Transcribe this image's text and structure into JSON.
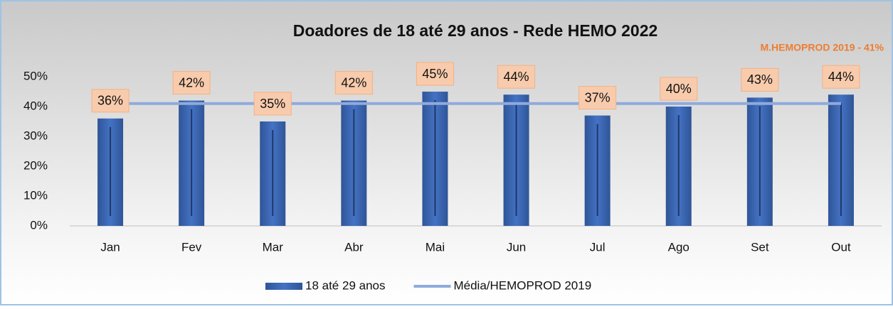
{
  "chart_data": {
    "type": "bar",
    "title": "Doadores de 18 até 29 anos - Rede HEMO 2022",
    "annotation": "M.HEMOPROD 2019 - 41%",
    "categories": [
      "Jan",
      "Fev",
      "Mar",
      "Abr",
      "Mai",
      "Jun",
      "Jul",
      "Ago",
      "Set",
      "Out"
    ],
    "series": [
      {
        "name": "18 até 29 anos",
        "type": "bar",
        "color": "#4472c4",
        "values": [
          36,
          42,
          35,
          42,
          45,
          44,
          37,
          40,
          43,
          44
        ],
        "value_labels": [
          "36%",
          "42%",
          "35%",
          "42%",
          "45%",
          "44%",
          "37%",
          "40%",
          "43%",
          "44%"
        ]
      },
      {
        "name": "Média/HEMOPROD 2019",
        "type": "line",
        "color": "#8faadc",
        "values": [
          41,
          41,
          41,
          41,
          41,
          41,
          41,
          41,
          41,
          41
        ]
      }
    ],
    "ylim": [
      0,
      50
    ],
    "yticks": [
      {
        "value": 0,
        "label": "0%"
      },
      {
        "value": 10,
        "label": "10%"
      },
      {
        "value": 20,
        "label": "20%"
      },
      {
        "value": 30,
        "label": "30%"
      },
      {
        "value": 40,
        "label": "40%"
      },
      {
        "value": 50,
        "label": "50%"
      }
    ],
    "grid": false,
    "legend": "bottom"
  }
}
